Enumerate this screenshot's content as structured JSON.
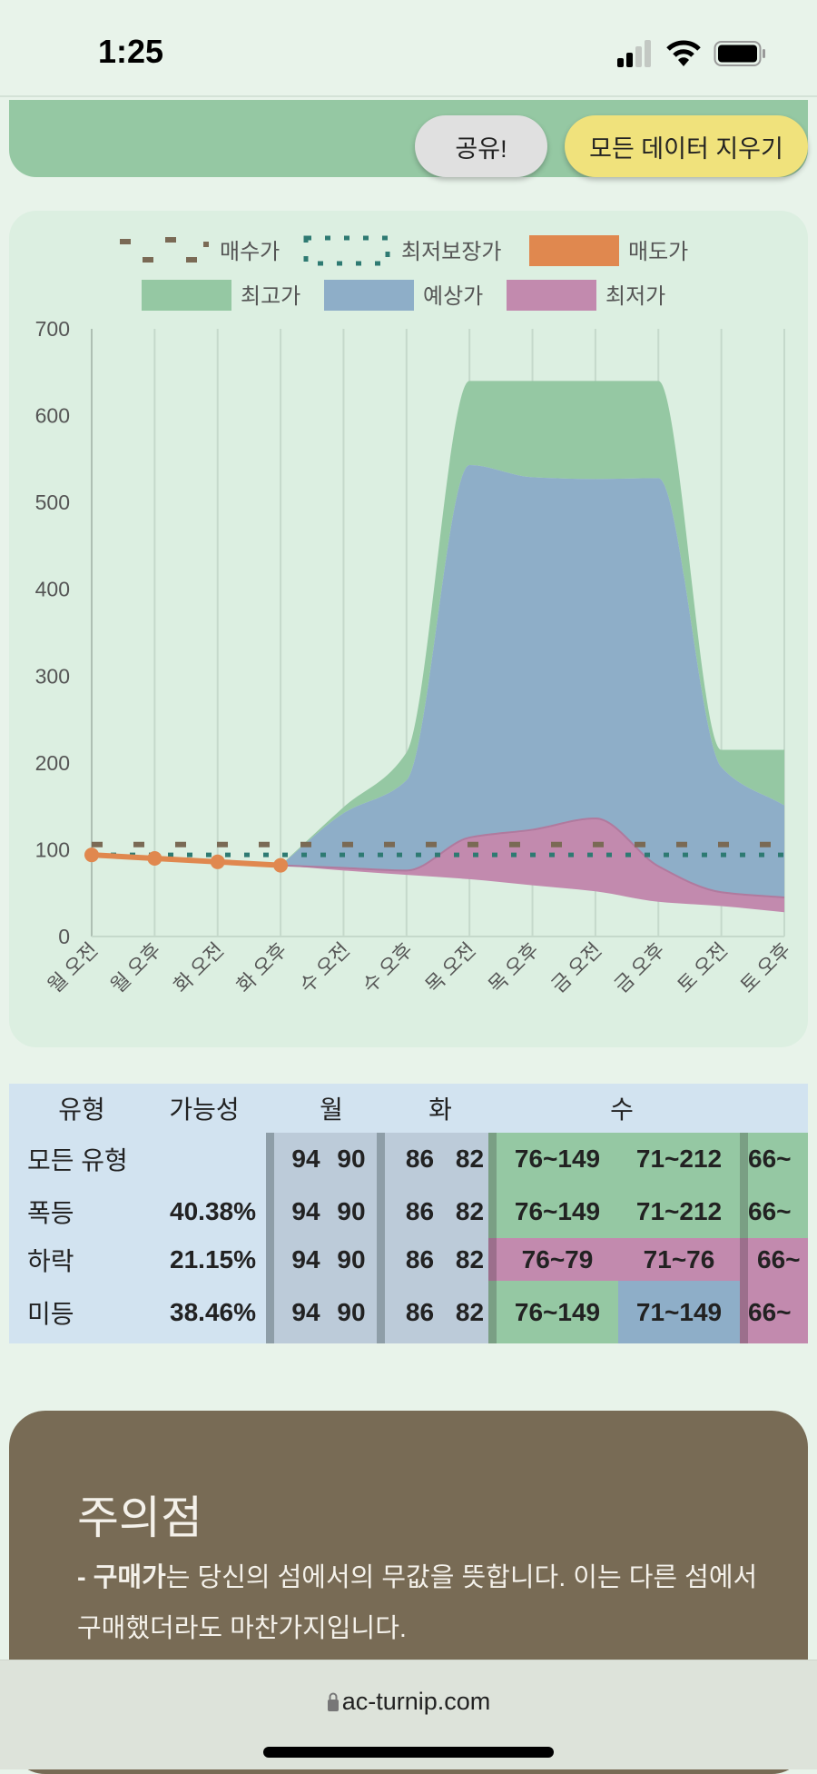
{
  "status_bar": {
    "time": "1:25"
  },
  "header": {
    "share_label": "공유!",
    "clear_label": "모든 데이터 지우기"
  },
  "chart_data": {
    "type": "area",
    "legend": [
      {
        "name": "매수가",
        "style": "dashed",
        "color": "#7a6a55"
      },
      {
        "name": "최저보장가",
        "style": "dotted",
        "color": "#2e7a72"
      },
      {
        "name": "매도가",
        "style": "line",
        "color": "#e0884f"
      },
      {
        "name": "최고가",
        "style": "area",
        "color": "#95c8a3"
      },
      {
        "name": "예상가",
        "style": "area",
        "color": "#8eaec8"
      },
      {
        "name": "최저가",
        "style": "area",
        "color": "#c28aae"
      }
    ],
    "legend_position": "top",
    "categories": [
      "월 오전",
      "월 오후",
      "화 오전",
      "화 오후",
      "수 오전",
      "수 오후",
      "목 오전",
      "목 오후",
      "금 오전",
      "금 오후",
      "토 오전",
      "토 오후"
    ],
    "ylim": [
      0,
      700
    ],
    "yticks": [
      0,
      100,
      200,
      300,
      400,
      500,
      600,
      700
    ],
    "grid": "vertical",
    "buy_price": 106,
    "guaranteed_min": 94,
    "sell_price": [
      94,
      90,
      86,
      82,
      null,
      null,
      null,
      null,
      null,
      null,
      null,
      null
    ],
    "max": [
      null,
      null,
      null,
      82,
      149,
      212,
      640,
      640,
      640,
      640,
      215,
      215
    ],
    "expected": [
      null,
      null,
      null,
      82,
      142,
      180,
      543,
      529,
      527,
      528,
      195,
      151
    ],
    "min_upper": [
      null,
      null,
      null,
      82,
      79,
      76,
      114,
      123,
      136,
      81,
      51,
      45
    ],
    "min": [
      null,
      null,
      null,
      82,
      76,
      71,
      66,
      59,
      52,
      40,
      35,
      28
    ]
  },
  "table": {
    "headers": [
      "유형",
      "가능성",
      "월",
      "화",
      "수"
    ],
    "rows": [
      {
        "type": "모든 유형",
        "prob": "",
        "mon": [
          "94",
          "90"
        ],
        "tue": [
          "86",
          "82"
        ],
        "wed": [
          "76~149",
          "71~212"
        ],
        "next": "66~",
        "colors": [
          "g",
          "g",
          "g"
        ]
      },
      {
        "type": "폭등",
        "prob": "40.38%",
        "mon": [
          "94",
          "90"
        ],
        "tue": [
          "86",
          "82"
        ],
        "wed": [
          "76~149",
          "71~212"
        ],
        "next": "66~",
        "colors": [
          "g",
          "g",
          "g"
        ]
      },
      {
        "type": "하락",
        "prob": "21.15%",
        "mon": [
          "94",
          "90"
        ],
        "tue": [
          "86",
          "82"
        ],
        "wed": [
          "76~79",
          "71~76"
        ],
        "next": "66~",
        "colors": [
          "p",
          "p",
          "p"
        ]
      },
      {
        "type": "미등",
        "prob": "38.46%",
        "mon": [
          "94",
          "90"
        ],
        "tue": [
          "86",
          "82"
        ],
        "wed": [
          "76~149",
          "71~149"
        ],
        "next": "66~",
        "colors": [
          "g",
          "b",
          "p"
        ]
      }
    ]
  },
  "notice": {
    "title": "주의점",
    "line1_bold": "- 구매가",
    "line1_rest": "는 당신의 섬에서의 무값을 뜻합니다. 이는 다른 섬에서 구매했더라도 마찬가지입니다."
  },
  "browser": {
    "url": "ac-turnip.com"
  }
}
